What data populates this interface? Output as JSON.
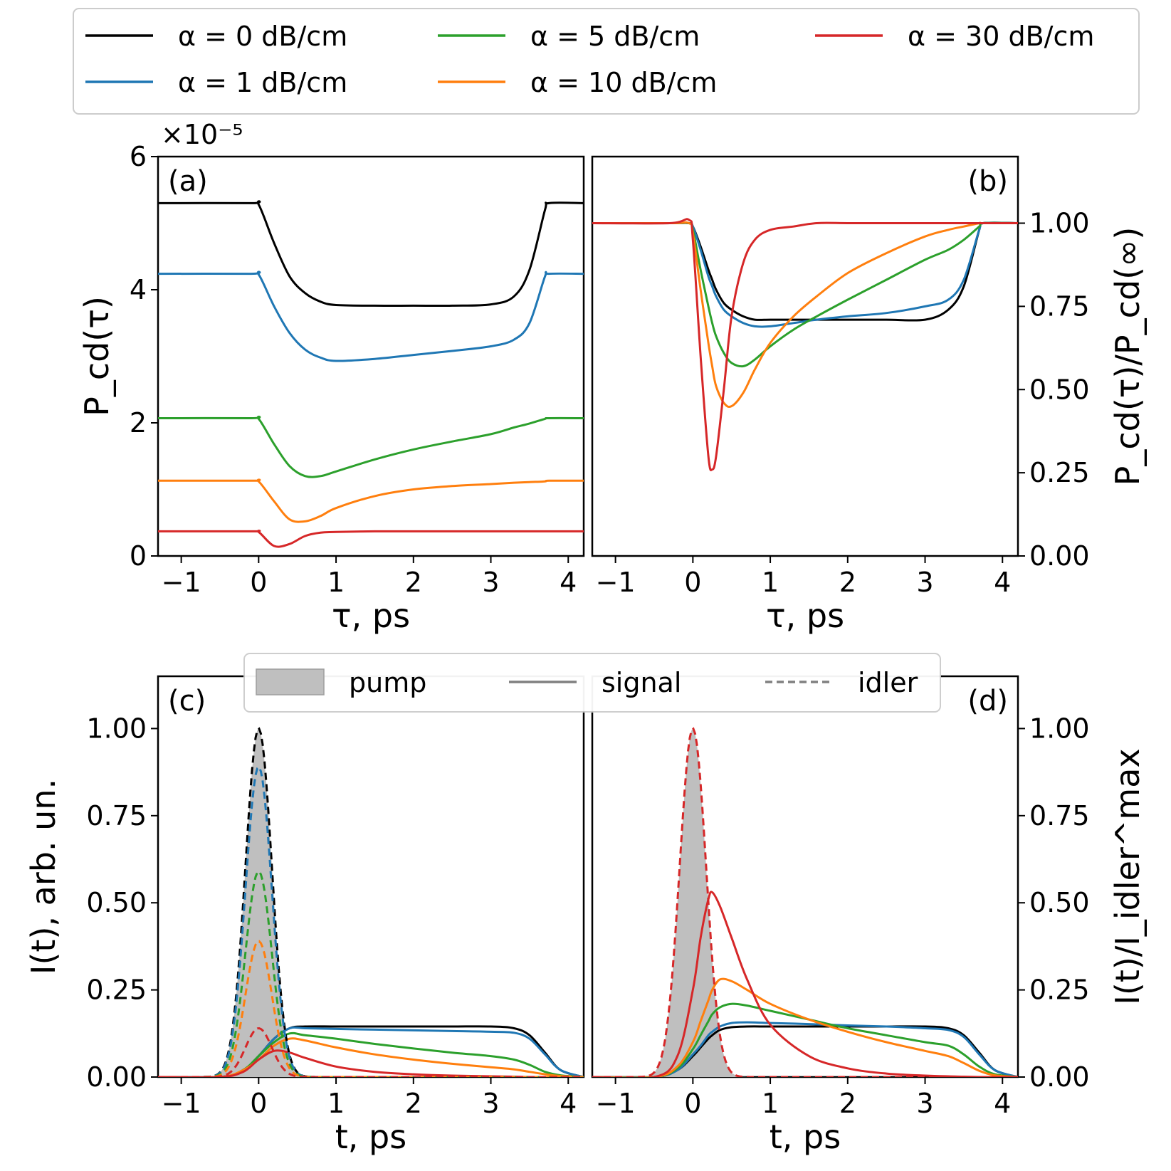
{
  "top_legend": {
    "entries": [
      {
        "label": "α = 0 dB/cm",
        "color": "#000000"
      },
      {
        "label": "α = 1 dB/cm",
        "color": "#1f77b4"
      },
      {
        "label": "α = 5 dB/cm",
        "color": "#2ca02c"
      },
      {
        "label": "α = 10 dB/cm",
        "color": "#ff7f0e"
      },
      {
        "label": "α = 30 dB/cm",
        "color": "#d62728"
      }
    ]
  },
  "style_legend": {
    "entries": [
      {
        "label": "pump",
        "style": "fill",
        "color": "#bfbfbf"
      },
      {
        "label": "signal",
        "style": "solid",
        "color": "#808080"
      },
      {
        "label": "idler",
        "style": "dashed",
        "color": "#808080"
      }
    ]
  },
  "chart_data": [
    {
      "panel": "(a)",
      "type": "line",
      "xlabel": "τ, ps",
      "ylabel": "P_cd(τ)",
      "yscale_label": "×10⁻⁵",
      "xlim": [
        -1.3,
        4.2
      ],
      "ylim": [
        0,
        6
      ],
      "xticks": [
        "−1",
        "0",
        "1",
        "2",
        "3",
        "4"
      ],
      "yticks": [
        "0",
        "2",
        "4",
        "6"
      ],
      "x": [
        -1.3,
        -0.1,
        0.0,
        0.2,
        0.4,
        0.6,
        0.8,
        1.0,
        1.5,
        2.0,
        2.5,
        3.0,
        3.3,
        3.5,
        3.7,
        3.75,
        4.2
      ],
      "series": [
        {
          "name": "α = 0 dB/cm",
          "color": "#000000",
          "values": [
            5.3,
            5.3,
            5.28,
            4.7,
            4.2,
            3.95,
            3.82,
            3.77,
            3.76,
            3.76,
            3.76,
            3.78,
            3.9,
            4.3,
            5.2,
            5.3,
            5.3
          ]
        },
        {
          "name": "α = 1 dB/cm",
          "color": "#1f77b4",
          "values": [
            4.24,
            4.24,
            4.23,
            3.75,
            3.35,
            3.1,
            2.98,
            2.93,
            2.96,
            3.02,
            3.08,
            3.15,
            3.25,
            3.5,
            4.2,
            4.24,
            4.24
          ]
        },
        {
          "name": "α = 5 dB/cm",
          "color": "#2ca02c",
          "values": [
            2.07,
            2.07,
            2.06,
            1.68,
            1.35,
            1.2,
            1.2,
            1.27,
            1.45,
            1.6,
            1.72,
            1.83,
            1.93,
            1.99,
            2.06,
            2.07,
            2.07
          ]
        },
        {
          "name": "α = 10 dB/cm",
          "color": "#ff7f0e",
          "values": [
            1.13,
            1.13,
            1.12,
            0.82,
            0.55,
            0.52,
            0.6,
            0.72,
            0.9,
            1.0,
            1.05,
            1.08,
            1.1,
            1.11,
            1.12,
            1.13,
            1.13
          ]
        },
        {
          "name": "α = 30 dB/cm",
          "color": "#d62728",
          "values": [
            0.37,
            0.37,
            0.36,
            0.15,
            0.18,
            0.3,
            0.35,
            0.36,
            0.37,
            0.37,
            0.37,
            0.37,
            0.37,
            0.37,
            0.37,
            0.37,
            0.37
          ]
        }
      ]
    },
    {
      "panel": "(b)",
      "type": "line",
      "xlabel": "τ, ps",
      "ylabel": "P_cd(τ)/P_cd(∞)",
      "xlim": [
        -1.3,
        4.2
      ],
      "ylim": [
        0,
        1.2
      ],
      "xticks": [
        "−1",
        "0",
        "1",
        "2",
        "3",
        "4"
      ],
      "yticks": [
        "0.00",
        "0.25",
        "0.50",
        "0.75",
        "1.00"
      ],
      "x": [
        -1.3,
        -0.3,
        -0.05,
        0.0,
        0.1,
        0.2,
        0.25,
        0.3,
        0.4,
        0.5,
        0.65,
        0.8,
        1.0,
        1.3,
        1.6,
        2.0,
        2.5,
        3.0,
        3.3,
        3.5,
        3.7,
        3.75,
        4.2
      ],
      "series": [
        {
          "name": "α = 0 dB/cm",
          "color": "#000000",
          "values": [
            1.0,
            1.0,
            1.0,
            0.99,
            0.93,
            0.86,
            0.83,
            0.8,
            0.76,
            0.74,
            0.72,
            0.71,
            0.71,
            0.71,
            0.71,
            0.71,
            0.71,
            0.71,
            0.74,
            0.81,
            0.98,
            1.0,
            1.0
          ]
        },
        {
          "name": "α = 1 dB/cm",
          "color": "#1f77b4",
          "values": [
            1.0,
            1.0,
            1.0,
            0.99,
            0.92,
            0.84,
            0.81,
            0.78,
            0.74,
            0.72,
            0.7,
            0.69,
            0.69,
            0.7,
            0.71,
            0.72,
            0.73,
            0.75,
            0.77,
            0.83,
            0.98,
            1.0,
            1.0
          ]
        },
        {
          "name": "α = 5 dB/cm",
          "color": "#2ca02c",
          "values": [
            1.0,
            1.0,
            1.0,
            0.98,
            0.86,
            0.75,
            0.7,
            0.66,
            0.61,
            0.58,
            0.57,
            0.59,
            0.63,
            0.68,
            0.72,
            0.77,
            0.83,
            0.89,
            0.92,
            0.95,
            0.99,
            1.0,
            1.0
          ]
        },
        {
          "name": "α = 10 dB/cm",
          "color": "#ff7f0e",
          "values": [
            1.0,
            1.0,
            1.0,
            0.97,
            0.8,
            0.64,
            0.57,
            0.51,
            0.46,
            0.45,
            0.49,
            0.56,
            0.64,
            0.72,
            0.78,
            0.85,
            0.91,
            0.96,
            0.98,
            0.99,
            1.0,
            1.0,
            1.0
          ]
        },
        {
          "name": "α = 30 dB/cm",
          "color": "#d62728",
          "values": [
            1.0,
            1.0,
            1.01,
            0.95,
            0.6,
            0.3,
            0.26,
            0.3,
            0.5,
            0.72,
            0.88,
            0.95,
            0.98,
            0.99,
            1.0,
            1.0,
            1.0,
            1.0,
            1.0,
            1.0,
            1.0,
            1.0,
            1.0
          ]
        }
      ]
    },
    {
      "panel": "(c)",
      "type": "line",
      "xlabel": "t, ps",
      "ylabel": "I(t), arb. un.",
      "xlim": [
        -1.3,
        4.2
      ],
      "ylim": [
        0,
        1.15
      ],
      "xticks": [
        "−1",
        "0",
        "1",
        "2",
        "3",
        "4"
      ],
      "yticks": [
        "0.00",
        "0.25",
        "0.50",
        "0.75",
        "1.00"
      ],
      "pump": {
        "type": "gaussian",
        "amplitude": 1.0,
        "center": 0.0,
        "sigma": 0.17
      },
      "idler_peaks": [
        {
          "name": "α = 0 dB/cm",
          "color": "#000000",
          "peak": 1.0
        },
        {
          "name": "α = 1 dB/cm",
          "color": "#1f77b4",
          "peak": 0.89
        },
        {
          "name": "α = 5 dB/cm",
          "color": "#2ca02c",
          "peak": 0.59
        },
        {
          "name": "α = 10 dB/cm",
          "color": "#ff7f0e",
          "peak": 0.39
        },
        {
          "name": "α = 30 dB/cm",
          "color": "#d62728",
          "peak": 0.14
        }
      ],
      "signal_x": [
        -1.3,
        -0.5,
        -0.2,
        0.0,
        0.2,
        0.4,
        0.6,
        1.0,
        1.5,
        2.0,
        2.5,
        3.0,
        3.3,
        3.5,
        3.7,
        3.9,
        4.2
      ],
      "signal_series": [
        {
          "name": "α = 0 dB/cm",
          "color": "#000000",
          "values": [
            0,
            0,
            0.02,
            0.06,
            0.11,
            0.14,
            0.145,
            0.145,
            0.145,
            0.145,
            0.145,
            0.145,
            0.14,
            0.12,
            0.07,
            0.02,
            0
          ]
        },
        {
          "name": "α = 1 dB/cm",
          "color": "#1f77b4",
          "values": [
            0,
            0,
            0.02,
            0.06,
            0.11,
            0.14,
            0.14,
            0.138,
            0.136,
            0.134,
            0.132,
            0.13,
            0.127,
            0.11,
            0.065,
            0.02,
            0
          ]
        },
        {
          "name": "α = 5 dB/cm",
          "color": "#2ca02c",
          "values": [
            0,
            0,
            0.02,
            0.06,
            0.1,
            0.125,
            0.12,
            0.11,
            0.095,
            0.082,
            0.07,
            0.06,
            0.05,
            0.035,
            0.015,
            0.005,
            0
          ]
        },
        {
          "name": "α = 10 dB/cm",
          "color": "#ff7f0e",
          "values": [
            0,
            0,
            0.02,
            0.05,
            0.09,
            0.11,
            0.105,
            0.085,
            0.065,
            0.05,
            0.038,
            0.028,
            0.022,
            0.015,
            0.008,
            0.003,
            0
          ]
        },
        {
          "name": "α = 30 dB/cm",
          "color": "#d62728",
          "values": [
            0,
            0,
            0.015,
            0.05,
            0.075,
            0.07,
            0.055,
            0.03,
            0.015,
            0.008,
            0.004,
            0.002,
            0.001,
            0,
            0,
            0,
            0
          ]
        }
      ]
    },
    {
      "panel": "(d)",
      "type": "line",
      "xlabel": "t, ps",
      "ylabel": "I(t)/I_idler^max",
      "xlim": [
        -1.3,
        4.2
      ],
      "ylim": [
        0,
        1.15
      ],
      "xticks": [
        "−1",
        "0",
        "1",
        "2",
        "3",
        "4"
      ],
      "yticks": [
        "0.00",
        "0.25",
        "0.50",
        "0.75",
        "1.00"
      ],
      "pump": {
        "type": "gaussian",
        "amplitude": 1.0,
        "center": 0.0,
        "sigma": 0.17
      },
      "idler_peaks": [
        {
          "name": "α = 30 dB/cm",
          "color": "#d62728",
          "peak": 1.0
        }
      ],
      "signal_x": [
        -1.3,
        -0.5,
        -0.2,
        0.0,
        0.1,
        0.2,
        0.25,
        0.35,
        0.5,
        0.7,
        1.0,
        1.5,
        2.0,
        2.5,
        3.0,
        3.3,
        3.5,
        3.7,
        3.9,
        4.2
      ],
      "signal_series": [
        {
          "name": "α = 0 dB/cm",
          "color": "#000000",
          "values": [
            0,
            0,
            0.02,
            0.06,
            0.085,
            0.11,
            0.12,
            0.135,
            0.143,
            0.145,
            0.145,
            0.145,
            0.145,
            0.145,
            0.145,
            0.14,
            0.12,
            0.07,
            0.02,
            0
          ]
        },
        {
          "name": "α = 1 dB/cm",
          "color": "#1f77b4",
          "values": [
            0,
            0,
            0.02,
            0.065,
            0.09,
            0.12,
            0.13,
            0.145,
            0.155,
            0.157,
            0.155,
            0.152,
            0.148,
            0.145,
            0.14,
            0.135,
            0.115,
            0.065,
            0.02,
            0
          ]
        },
        {
          "name": "α = 5 dB/cm",
          "color": "#2ca02c",
          "values": [
            0,
            0,
            0.025,
            0.08,
            0.12,
            0.16,
            0.18,
            0.2,
            0.21,
            0.205,
            0.19,
            0.165,
            0.14,
            0.12,
            0.1,
            0.09,
            0.065,
            0.03,
            0.008,
            0
          ]
        },
        {
          "name": "α = 10 dB/cm",
          "color": "#ff7f0e",
          "values": [
            0,
            0,
            0.03,
            0.1,
            0.16,
            0.22,
            0.25,
            0.28,
            0.275,
            0.25,
            0.21,
            0.165,
            0.13,
            0.1,
            0.075,
            0.06,
            0.04,
            0.018,
            0.005,
            0
          ]
        },
        {
          "name": "α = 30 dB/cm",
          "color": "#d62728",
          "values": [
            0,
            0,
            0.06,
            0.25,
            0.4,
            0.51,
            0.53,
            0.49,
            0.4,
            0.28,
            0.15,
            0.06,
            0.025,
            0.01,
            0.004,
            0.002,
            0.001,
            0,
            0,
            0
          ]
        }
      ]
    }
  ]
}
